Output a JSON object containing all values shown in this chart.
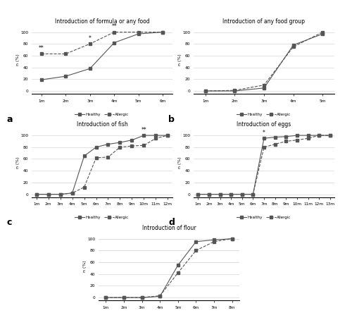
{
  "panel_a": {
    "title": "Introduction of formula or any food",
    "x_labels": [
      "1m",
      "2m",
      "3m",
      "4m",
      "5m",
      "6m"
    ],
    "healthy": [
      19,
      25,
      38,
      82,
      97,
      100
    ],
    "allergic": [
      63,
      63,
      80,
      100,
      100,
      100
    ],
    "sig_positions": {
      "0": "**",
      "2": "*",
      "3": "**"
    }
  },
  "panel_b": {
    "title": "Introduction of any food group",
    "x_labels": [
      "1m",
      "2m",
      "3m",
      "4m",
      "5m"
    ],
    "healthy": [
      0,
      0,
      5,
      78,
      97
    ],
    "allergic": [
      0,
      1,
      10,
      75,
      100
    ],
    "sig_positions": {}
  },
  "panel_c": {
    "title": "Introduction of fish",
    "x_labels": [
      "1m",
      "2m",
      "3m",
      "4m",
      "5m",
      "6m",
      "7m",
      "8m",
      "9m",
      "10m",
      "11m",
      "12m"
    ],
    "healthy": [
      0,
      0,
      0,
      2,
      65,
      80,
      85,
      88,
      92,
      100,
      100,
      100
    ],
    "allergic": [
      0,
      0,
      0,
      2,
      12,
      62,
      63,
      80,
      82,
      83,
      95,
      100
    ],
    "sig_positions": {
      "9": "**"
    }
  },
  "panel_d": {
    "title": "Introduction of eggs",
    "x_labels": [
      "1m",
      "2m",
      "3m",
      "4m",
      "5m",
      "6m",
      "7m",
      "8m",
      "9m",
      "10m",
      "11m",
      "12m",
      "13m"
    ],
    "healthy": [
      0,
      0,
      0,
      0,
      0,
      0,
      95,
      97,
      98,
      100,
      100,
      100,
      100
    ],
    "allergic": [
      0,
      0,
      0,
      0,
      0,
      0,
      80,
      85,
      90,
      92,
      95,
      100,
      100
    ],
    "sig_positions": {
      "6": "*"
    }
  },
  "panel_e": {
    "title": "Introduction of flour",
    "x_labels": [
      "1m",
      "2m",
      "3m",
      "4m",
      "5m",
      "6m",
      "7m",
      "8m"
    ],
    "healthy": [
      0,
      0,
      0,
      2,
      55,
      95,
      98,
      100
    ],
    "allergic": [
      0,
      0,
      0,
      3,
      42,
      80,
      95,
      100
    ],
    "sig_positions": {}
  },
  "ylabel": "n (%)",
  "yticks": [
    0,
    20,
    40,
    60,
    80,
    100
  ],
  "ylim": [
    -5,
    112
  ],
  "line_color": "#555555",
  "healthy_linestyle": "-",
  "allergic_linestyle": "--",
  "marker": "s",
  "markersize": 2.5,
  "linewidth": 0.8,
  "legend_healthy": "Healthy",
  "legend_allergic": "Allergic",
  "bg_color": "#ffffff",
  "grid_color": "#cccccc",
  "title_fontsize": 5.5,
  "tick_fontsize": 4.2,
  "ylabel_fontsize": 4.5,
  "legend_fontsize": 4.0,
  "sig_fontsize": 5.5,
  "panel_label_fontsize": 9
}
